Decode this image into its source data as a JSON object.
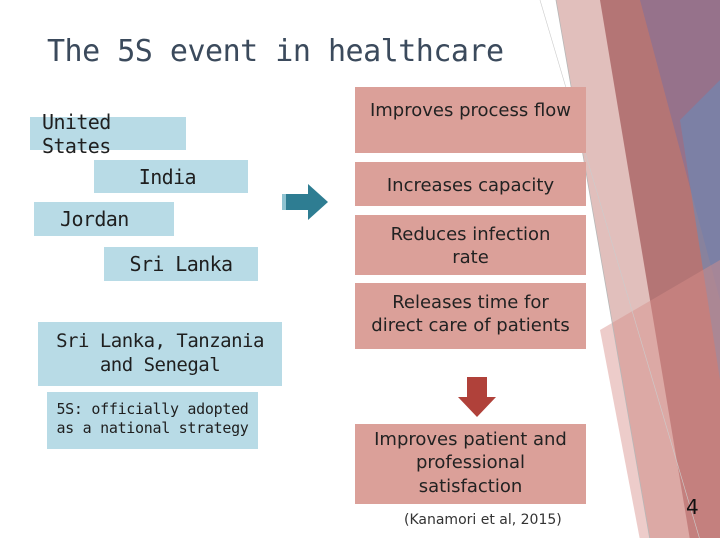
{
  "slide": {
    "title": "The 5S event in healthcare",
    "countries": {
      "united_states": "United States",
      "india": "India",
      "jordan": "Jordan",
      "sri_lanka": "Sri Lanka",
      "multi_line1": "Sri Lanka, Tanzania",
      "multi_line2": "and Senegal",
      "strategy_line1": "5S: officially adopted",
      "strategy_line2": "as a national strategy"
    },
    "outcomes": {
      "process_flow": "Improves process flow",
      "capacity": "Increases capacity",
      "infection_line1": "Reduces infection",
      "infection_line2": "rate",
      "time_line1": "Releases time for",
      "time_line2": "direct care of patients",
      "satisfaction_line1": "Improves patient and",
      "satisfaction_line2": "professional",
      "satisfaction_line3": "satisfaction"
    },
    "citation": "(Kanamori et al, 2015)",
    "page_number": "4",
    "colors": {
      "blue_box": "#b8dbe6",
      "red_box": "#dba099",
      "arrow_teal": "#2e7d92",
      "arrow_red": "#b0413a",
      "title": "#3b4a5c"
    }
  }
}
